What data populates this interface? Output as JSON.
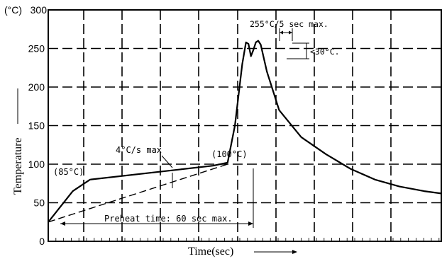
{
  "chart_data": {
    "type": "line",
    "title": "",
    "y_unit": "(°C)",
    "xlabel": "Time(sec)",
    "ylabel": "Temperature",
    "ylim": [
      0,
      300
    ],
    "yticks": [
      0,
      50,
      100,
      150,
      200,
      250,
      300
    ],
    "grid": true,
    "series": [
      {
        "name": "",
        "style": "solid",
        "points": [
          [
            0,
            25
          ],
          [
            10,
            65
          ],
          [
            17,
            80
          ],
          [
            67,
            98
          ],
          [
            73,
            102
          ],
          [
            76,
            150
          ],
          [
            79,
            230
          ],
          [
            80.5,
            258
          ],
          [
            81.5,
            256
          ],
          [
            82.5,
            240
          ],
          [
            83.5,
            248
          ],
          [
            84.5,
            258
          ],
          [
            85.5,
            260
          ],
          [
            86.5,
            255
          ],
          [
            89,
            220
          ],
          [
            94,
            170
          ],
          [
            103,
            135
          ],
          [
            113,
            113
          ],
          [
            123,
            94
          ],
          [
            133,
            80
          ],
          [
            143,
            71
          ],
          [
            153,
            65
          ],
          [
            160,
            62
          ]
        ]
      },
      {
        "name": "",
        "style": "dashed",
        "points": [
          [
            0,
            25
          ],
          [
            73,
            100
          ]
        ]
      }
    ],
    "annotations": [
      {
        "text": "(85°C)",
        "x": 2,
        "y": 88
      },
      {
        "text": "(100°C)",
        "x": 63,
        "y": 108
      },
      {
        "text": "4°C/s max",
        "x": 25,
        "y": 120
      },
      {
        "text": "255°C/5 sec max",
        "x": 78,
        "y": 282
      },
      {
        "text": "<30°C",
        "x": 95,
        "y": 243
      },
      {
        "text": "Preheat time: 60 sec max.",
        "x": 20,
        "y": 32
      }
    ]
  },
  "colors": {
    "line": "#000000",
    "background": "#ffffff"
  },
  "labels": {
    "y_unit_label": "(°C)",
    "x_axis_title": "Time(sec)",
    "y_axis_title": "Temperature",
    "ann_85": "(85°C)",
    "ann_100": "(100°C)",
    "ann_ramp": "4°C/s max",
    "ann_peak": "255°C/5 sec max.",
    "ann_delta": "<30°C.",
    "ann_preheat": "Preheat time: 60 sec max."
  }
}
